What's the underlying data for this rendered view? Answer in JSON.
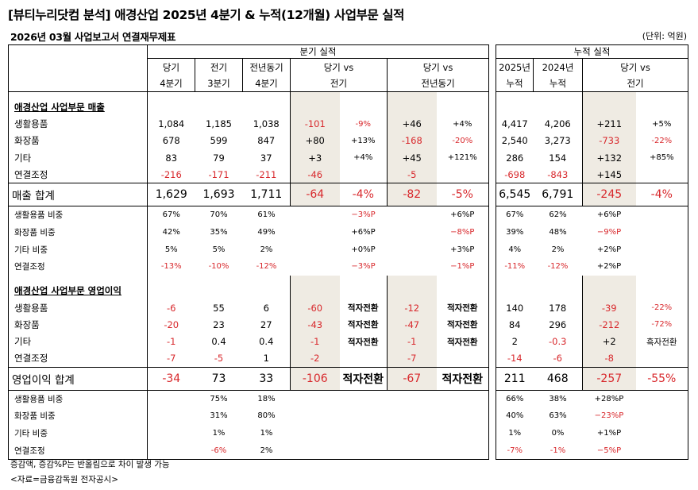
{
  "title": "[뷰티누리닷컴 분석] 애경산업 2025년 4분기 & 누적(12개월) 사업부문 실적",
  "subtitle": "2026년 03월 사업보고서 연결재무제표",
  "unit": "(단위: 억원)",
  "quarter_header": {
    "group": "분기 실적",
    "cur": [
      "당기",
      "4분기"
    ],
    "prev": [
      "전기",
      "3분기"
    ],
    "yoy": [
      "전년동기",
      "4분기"
    ],
    "vs_prev": [
      "당기 vs",
      "전기"
    ],
    "vs_yoy": [
      "당기 vs",
      "전년동기"
    ]
  },
  "cum_header": {
    "group": "누적 실적",
    "y2025": [
      "2025년",
      "누적"
    ],
    "y2024": [
      "2024년",
      "누적"
    ],
    "vs": [
      "당기 vs",
      "전기"
    ]
  },
  "sales": {
    "section": "애경산업 사업부문 매출",
    "rows": [
      {
        "label": "생활용품",
        "q": [
          "1,084",
          "1,185",
          "1,038",
          "-101",
          "-9%",
          "+46",
          "+4%"
        ],
        "c": [
          "4,417",
          "4,206",
          "+211",
          "+5%"
        ]
      },
      {
        "label": "화장품",
        "q": [
          "678",
          "599",
          "847",
          "+80",
          "+13%",
          "-168",
          "-20%"
        ],
        "c": [
          "2,540",
          "3,273",
          "-733",
          "-22%"
        ]
      },
      {
        "label": "기타",
        "q": [
          "83",
          "79",
          "37",
          "+3",
          "+4%",
          "+45",
          "+121%"
        ],
        "c": [
          "286",
          "154",
          "+132",
          "+85%"
        ]
      },
      {
        "label": "연결조정",
        "q": [
          "-216",
          "-171",
          "-211",
          "-46",
          "",
          "-5",
          ""
        ],
        "c": [
          "-698",
          "-843",
          "+145",
          ""
        ]
      }
    ],
    "total": {
      "label": "매출 합계",
      "q": [
        "1,629",
        "1,693",
        "1,711",
        "-64",
        "-4%",
        "-82",
        "-5%"
      ],
      "c": [
        "6,545",
        "6,791",
        "-245",
        "-4%"
      ]
    },
    "shares": [
      {
        "label": "생활용품 비중",
        "q": [
          "67%",
          "70%",
          "61%",
          "−3%P",
          "+6%P"
        ],
        "c": [
          "67%",
          "62%",
          "+6%P"
        ]
      },
      {
        "label": "화장품 비중",
        "q": [
          "42%",
          "35%",
          "49%",
          "+6%P",
          "−8%P"
        ],
        "c": [
          "39%",
          "48%",
          "−9%P"
        ]
      },
      {
        "label": "기타 비중",
        "q": [
          "5%",
          "5%",
          "2%",
          "+0%P",
          "+3%P"
        ],
        "c": [
          "4%",
          "2%",
          "+2%P"
        ]
      },
      {
        "label": "연결조정",
        "q": [
          "-13%",
          "-10%",
          "-12%",
          "−3%P",
          "−1%P"
        ],
        "c": [
          "-11%",
          "-12%",
          "+2%P"
        ]
      }
    ]
  },
  "op": {
    "section": "애경산업 사업부문 영업이익",
    "rows": [
      {
        "label": "생활용품",
        "q": [
          "-6",
          "55",
          "6",
          "-60",
          "적자전환",
          "-12",
          "적자전환"
        ],
        "c": [
          "140",
          "178",
          "-39",
          "-22%"
        ]
      },
      {
        "label": "화장품",
        "q": [
          "-20",
          "23",
          "27",
          "-43",
          "적자전환",
          "-47",
          "적자전환"
        ],
        "c": [
          "84",
          "296",
          "-212",
          "-72%"
        ]
      },
      {
        "label": "기타",
        "q": [
          "-1",
          "0.4",
          "0.4",
          "-1",
          "적자전환",
          "-1",
          "적자전환"
        ],
        "c": [
          "2",
          "-0.3",
          "+2",
          "흑자전환"
        ]
      },
      {
        "label": "연결조정",
        "q": [
          "-7",
          "-5",
          "1",
          "-2",
          "",
          "-7",
          ""
        ],
        "c": [
          "-14",
          "-6",
          "-8",
          ""
        ]
      }
    ],
    "total": {
      "label": "영업이익 합계",
      "q": [
        "-34",
        "73",
        "33",
        "-106",
        "적자전환",
        "-67",
        "적자전환"
      ],
      "c": [
        "211",
        "468",
        "-257",
        "-55%"
      ]
    },
    "shares": [
      {
        "label": "생활용품 비중",
        "q": [
          "",
          "75%",
          "18%",
          "",
          ""
        ],
        "c": [
          "66%",
          "38%",
          "+28%P"
        ]
      },
      {
        "label": "화장품 비중",
        "q": [
          "",
          "31%",
          "80%",
          "",
          ""
        ],
        "c": [
          "40%",
          "63%",
          "−23%P"
        ]
      },
      {
        "label": "기타 비중",
        "q": [
          "",
          "1%",
          "1%",
          "",
          ""
        ],
        "c": [
          "1%",
          "0%",
          "+1%P"
        ]
      },
      {
        "label": "연결조정",
        "q": [
          "",
          "-6%",
          "2%",
          "",
          ""
        ],
        "c": [
          "-7%",
          "-1%",
          "−5%P"
        ]
      }
    ]
  },
  "footnotes": [
    "증감액, 증감%P는 반올림으로 차이 발생 가능",
    "<자료=금융감독원 전자공시>"
  ],
  "colors": {
    "negative": "#d8282c",
    "highlight": "#efebe3"
  }
}
